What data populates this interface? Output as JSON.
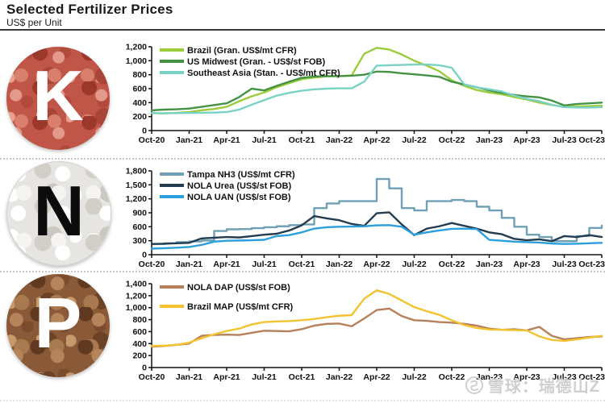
{
  "header": {
    "title": "Selected Fertilizer Prices",
    "subtitle": "US$ per Unit"
  },
  "panels": [
    {
      "letter": "K"
    },
    {
      "letter": "N"
    },
    {
      "letter": "P"
    }
  ],
  "watermark": {
    "source_label": "雪球：瑞德山Z"
  },
  "chart_data": [
    {
      "type": "line",
      "panel": "K",
      "grid": false,
      "legend_position": "top-left",
      "legend_start": 16,
      "legend_row_spacing": 14,
      "months": 37,
      "x_labels": [
        "Oct-20",
        "Jan-21",
        "Apr-21",
        "Jul-21",
        "Oct-21",
        "Jan-22",
        "Apr-22",
        "Jul-22",
        "Oct-22",
        "Jan-23",
        "Apr-23",
        "Jul-23",
        "Oct-23"
      ],
      "ylim": [
        0,
        1200
      ],
      "ytick_step": 200,
      "series": [
        {
          "name": "Brazil (Gran. US$/mt CFR)",
          "color": "#9ACC3C",
          "values": [
            250,
            245,
            255,
            265,
            290,
            310,
            340,
            420,
            490,
            545,
            620,
            680,
            735,
            760,
            775,
            780,
            790,
            1100,
            1185,
            1160,
            1090,
            1000,
            930,
            850,
            720,
            640,
            580,
            545,
            520,
            480,
            445,
            400,
            365,
            340,
            345,
            350,
            355
          ]
        },
        {
          "name": "US Midwest (Gran. - US$/st FOB)",
          "color": "#459245",
          "values": [
            290,
            300,
            305,
            315,
            340,
            365,
            390,
            480,
            600,
            575,
            640,
            700,
            755,
            775,
            780,
            780,
            785,
            800,
            845,
            840,
            820,
            805,
            790,
            770,
            700,
            660,
            620,
            575,
            540,
            510,
            490,
            475,
            430,
            360,
            380,
            390,
            400
          ]
        },
        {
          "name": "Southeast Asia (Stan. - US$/mt CFR)",
          "color": "#7AD2C5",
          "values": [
            250,
            248,
            250,
            252,
            255,
            258,
            265,
            300,
            370,
            435,
            500,
            540,
            570,
            590,
            600,
            605,
            605,
            700,
            930,
            935,
            940,
            945,
            945,
            935,
            900,
            660,
            620,
            590,
            560,
            500,
            455,
            420,
            370,
            335,
            330,
            330,
            335
          ]
        }
      ]
    },
    {
      "type": "line",
      "panel": "N",
      "grid": false,
      "legend_position": "top-left",
      "legend_start": 16,
      "legend_row_spacing": 14,
      "months": 37,
      "x_labels": [
        "Oct-20",
        "Jan-21",
        "Apr-21",
        "Jul-21",
        "Oct-21",
        "Jan-22",
        "Apr-22",
        "Jul-22",
        "Oct-22",
        "Jan-23",
        "Apr-23",
        "Jul-23",
        "Oct-23"
      ],
      "ylim": [
        0,
        1800
      ],
      "ytick_step": 300,
      "series": [
        {
          "name": "Tampa NH3 (US$/mt CFR)",
          "color": "#6FA0B5",
          "step": true,
          "values": [
            230,
            245,
            270,
            285,
            305,
            510,
            545,
            550,
            570,
            590,
            610,
            635,
            650,
            1000,
            1100,
            1150,
            1150,
            1150,
            1625,
            1425,
            1000,
            950,
            1150,
            1150,
            1175,
            1150,
            1030,
            950,
            790,
            600,
            430,
            380,
            290,
            290,
            400,
            575,
            625
          ]
        },
        {
          "name": "NOLA Urea (US$/st FOB)",
          "color": "#243C4F",
          "values": [
            230,
            235,
            245,
            255,
            350,
            365,
            380,
            370,
            400,
            430,
            450,
            520,
            630,
            830,
            780,
            740,
            660,
            620,
            890,
            910,
            650,
            420,
            560,
            610,
            680,
            620,
            560,
            480,
            440,
            340,
            310,
            330,
            290,
            400,
            380,
            420,
            380
          ]
        },
        {
          "name": "NOLA UAN (US$/st FOB)",
          "color": "#2BA0DC",
          "values": [
            130,
            140,
            150,
            165,
            210,
            280,
            300,
            305,
            310,
            320,
            400,
            420,
            480,
            560,
            590,
            600,
            605,
            610,
            630,
            635,
            600,
            430,
            480,
            520,
            555,
            560,
            550,
            320,
            300,
            280,
            270,
            260,
            240,
            230,
            235,
            245,
            255
          ]
        }
      ]
    },
    {
      "type": "line",
      "panel": "P",
      "grid": false,
      "legend_position": "top-left",
      "legend_start": 16,
      "legend_row_spacing": 24,
      "months": 37,
      "x_labels": [
        "Oct-20",
        "Jan-21",
        "Apr-21",
        "Jul-21",
        "Oct-21",
        "Jan-22",
        "Apr-22",
        "Jul-22",
        "Oct-22",
        "Jan-23",
        "Apr-23",
        "Jul-23",
        "Oct-23"
      ],
      "ylim": [
        0,
        1400
      ],
      "ytick_step": 200,
      "series": [
        {
          "name": "NOLA DAP (US$/st FOB)",
          "color": "#B5805A",
          "values": [
            350,
            360,
            380,
            400,
            530,
            545,
            550,
            545,
            580,
            615,
            610,
            605,
            640,
            700,
            730,
            735,
            690,
            820,
            960,
            985,
            860,
            790,
            780,
            760,
            750,
            730,
            700,
            650,
            630,
            640,
            620,
            680,
            530,
            470,
            490,
            510,
            520
          ]
        },
        {
          "name": "Brazil MAP (US$/mt CFR)",
          "color": "#F3C32F",
          "values": [
            360,
            365,
            380,
            415,
            490,
            555,
            610,
            650,
            720,
            760,
            770,
            775,
            790,
            810,
            840,
            865,
            875,
            1150,
            1290,
            1230,
            1120,
            1010,
            940,
            880,
            790,
            710,
            660,
            635,
            630,
            625,
            620,
            520,
            460,
            445,
            470,
            500,
            530
          ]
        }
      ]
    }
  ]
}
